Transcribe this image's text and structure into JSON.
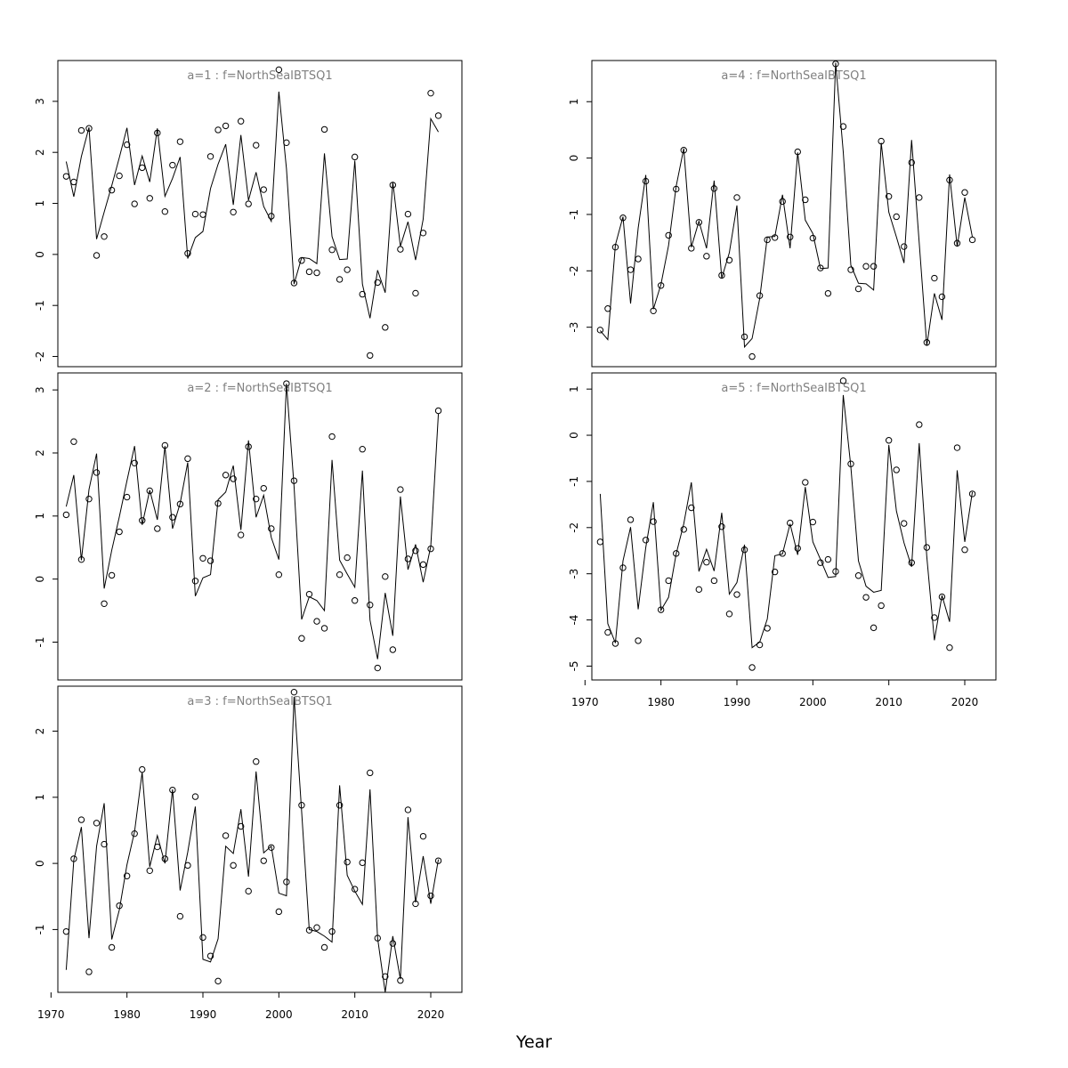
{
  "figure": {
    "xlabel": "Year"
  },
  "chart_data": [
    {
      "type": "scatter",
      "title": "a=1  :  f=NorthSeaIBTSQ1",
      "xlim": [
        1970.9,
        2024.1
      ],
      "ylim": [
        -2.2,
        3.8
      ],
      "xticks": [],
      "yticks": [
        -2,
        -1,
        0,
        1,
        2,
        3
      ],
      "x": [
        1972,
        1973,
        1974,
        1975,
        1976,
        1977,
        1978,
        1979,
        1980,
        1981,
        1982,
        1983,
        1984,
        1985,
        1986,
        1987,
        1988,
        1989,
        1990,
        1991,
        1992,
        1993,
        1994,
        1995,
        1996,
        1997,
        1998,
        1999,
        2000,
        2001,
        2002,
        2003,
        2004,
        2005,
        2006,
        2007,
        2008,
        2009,
        2010,
        2011,
        2012,
        2013,
        2014,
        2015,
        2016,
        2017,
        2018,
        2019,
        2020,
        2021
      ],
      "series": [
        {
          "marker": "circle",
          "values": [
            1.53,
            1.42,
            2.43,
            2.47,
            -0.02,
            0.35,
            1.26,
            1.54,
            2.15,
            0.99,
            1.7,
            1.1,
            2.38,
            0.84,
            1.75,
            2.21,
            0.02,
            0.79,
            0.78,
            1.92,
            2.44,
            2.52,
            0.83,
            2.61,
            0.99,
            2.14,
            1.27,
            0.75,
            3.62,
            2.19,
            -0.56,
            -0.12,
            -0.34,
            -0.36,
            2.45,
            0.09,
            -0.49,
            -0.3,
            1.91,
            -0.78,
            -1.98,
            -0.55,
            -1.43,
            1.36,
            0.1,
            0.79,
            -0.76,
            0.42,
            3.16,
            2.72
          ]
        },
        {
          "marker": "line",
          "values": [
            1.82,
            1.13,
            1.92,
            2.49,
            0.3,
            0.83,
            1.35,
            1.9,
            2.48,
            1.36,
            1.93,
            1.42,
            2.47,
            1.14,
            1.49,
            1.91,
            -0.08,
            0.33,
            0.45,
            1.29,
            1.77,
            2.16,
            0.97,
            2.34,
            1.06,
            1.61,
            0.94,
            0.65,
            3.19,
            1.68,
            -0.58,
            -0.06,
            -0.08,
            -0.18,
            1.98,
            0.35,
            -0.1,
            -0.09,
            1.84,
            -0.58,
            -1.25,
            -0.31,
            -0.75,
            1.42,
            0.16,
            0.64,
            -0.11,
            0.69,
            2.66,
            2.4
          ]
        }
      ]
    },
    {
      "type": "scatter",
      "title": "a=2  :  f=NorthSeaIBTSQ1",
      "xlim": [
        1970.9,
        2024.1
      ],
      "ylim": [
        -1.6,
        3.27
      ],
      "xticks": [],
      "yticks": [
        -1,
        0,
        1,
        2,
        3
      ],
      "x": [
        1972,
        1973,
        1974,
        1975,
        1976,
        1977,
        1978,
        1979,
        1980,
        1981,
        1982,
        1983,
        1984,
        1985,
        1986,
        1987,
        1988,
        1989,
        1990,
        1991,
        1992,
        1993,
        1994,
        1995,
        1996,
        1997,
        1998,
        1999,
        2000,
        2001,
        2002,
        2003,
        2004,
        2005,
        2006,
        2007,
        2008,
        2009,
        2010,
        2011,
        2012,
        2013,
        2014,
        2015,
        2016,
        2017,
        2018,
        2019,
        2020,
        2021
      ],
      "series": [
        {
          "marker": "circle",
          "values": [
            1.02,
            2.18,
            0.31,
            1.27,
            1.69,
            -0.39,
            0.06,
            0.75,
            1.3,
            1.84,
            0.93,
            1.4,
            0.8,
            2.12,
            0.98,
            1.19,
            1.91,
            -0.03,
            0.33,
            0.29,
            1.2,
            1.65,
            1.59,
            0.7,
            2.1,
            1.27,
            1.44,
            0.8,
            0.07,
            3.1,
            1.56,
            -0.94,
            -0.24,
            -0.67,
            -0.78,
            2.26,
            0.07,
            0.34,
            -0.34,
            2.06,
            -0.41,
            -1.41,
            0.04,
            -1.12,
            1.42,
            0.32,
            0.45,
            0.23,
            0.48,
            2.67
          ]
        },
        {
          "marker": "line",
          "values": [
            1.15,
            1.65,
            0.3,
            1.42,
            1.99,
            -0.15,
            0.46,
            0.99,
            1.56,
            2.11,
            0.86,
            1.41,
            0.94,
            2.11,
            0.8,
            1.2,
            1.85,
            -0.27,
            0.02,
            0.07,
            1.26,
            1.38,
            1.8,
            0.78,
            2.2,
            0.98,
            1.33,
            0.66,
            0.31,
            3.1,
            1.47,
            -0.64,
            -0.28,
            -0.34,
            -0.5,
            1.89,
            0.3,
            0.08,
            -0.13,
            1.72,
            -0.65,
            -1.27,
            -0.22,
            -0.9,
            1.31,
            0.15,
            0.55,
            -0.05,
            0.52,
            2.62
          ]
        }
      ]
    },
    {
      "type": "scatter",
      "title": "a=3  :  f=NorthSeaIBTSQ1",
      "xlim": [
        1970.9,
        2024.1
      ],
      "ylim": [
        -1.95,
        2.68
      ],
      "xticks": [
        1970,
        1980,
        1990,
        2000,
        2010,
        2020
      ],
      "yticks": [
        -1,
        0,
        1,
        2
      ],
      "x": [
        1972,
        1973,
        1974,
        1975,
        1976,
        1977,
        1978,
        1979,
        1980,
        1981,
        1982,
        1983,
        1984,
        1985,
        1986,
        1987,
        1988,
        1989,
        1990,
        1991,
        1992,
        1993,
        1994,
        1995,
        1996,
        1997,
        1998,
        1999,
        2000,
        2001,
        2002,
        2003,
        2004,
        2005,
        2006,
        2007,
        2008,
        2009,
        2010,
        2011,
        2012,
        2013,
        2014,
        2015,
        2016,
        2017,
        2018,
        2019,
        2020,
        2021
      ],
      "series": [
        {
          "marker": "circle",
          "values": [
            -1.03,
            0.07,
            0.66,
            -1.64,
            0.61,
            0.29,
            -1.27,
            -0.64,
            -0.19,
            0.45,
            1.42,
            -0.11,
            0.25,
            0.07,
            1.11,
            -0.8,
            -0.03,
            1.01,
            -1.12,
            -1.4,
            -1.78,
            0.42,
            -0.03,
            0.56,
            -0.42,
            1.54,
            0.04,
            0.24,
            -0.73,
            -0.28,
            2.59,
            0.88,
            -1.01,
            -0.97,
            -1.27,
            -1.03,
            0.88,
            0.02,
            -0.39,
            0.01,
            1.37,
            -1.13,
            -1.71,
            -1.21,
            -1.77,
            0.81,
            -0.61,
            0.41,
            -0.49,
            0.04
          ]
        },
        {
          "marker": "line",
          "values": [
            -1.61,
            0.05,
            0.55,
            -1.13,
            0.26,
            0.91,
            -1.15,
            -0.7,
            -0.02,
            0.48,
            1.38,
            -0.05,
            0.42,
            0.0,
            1.12,
            -0.41,
            0.17,
            0.86,
            -1.45,
            -1.49,
            -1.14,
            0.26,
            0.15,
            0.82,
            -0.2,
            1.39,
            0.16,
            0.26,
            -0.45,
            -0.49,
            2.52,
            0.78,
            -1.0,
            -1.03,
            -1.1,
            -1.19,
            1.18,
            -0.18,
            -0.42,
            -0.62,
            1.12,
            -1.13,
            -1.95,
            -1.1,
            -1.75,
            0.7,
            -0.59,
            0.11,
            -0.61,
            0.06
          ]
        }
      ]
    },
    {
      "type": "scatter",
      "title": "a=4  :  f=NorthSeaIBTSQ1",
      "xlim": [
        1970.9,
        2024.1
      ],
      "ylim": [
        -3.7,
        1.73
      ],
      "xticks": [],
      "yticks": [
        -3,
        -2,
        -1,
        0,
        1
      ],
      "x": [
        1972,
        1973,
        1974,
        1975,
        1976,
        1977,
        1978,
        1979,
        1980,
        1981,
        1982,
        1983,
        1984,
        1985,
        1986,
        1987,
        1988,
        1989,
        1990,
        1991,
        1992,
        1993,
        1994,
        1995,
        1996,
        1997,
        1998,
        1999,
        2000,
        2001,
        2002,
        2003,
        2004,
        2005,
        2006,
        2007,
        2008,
        2009,
        2010,
        2011,
        2012,
        2013,
        2014,
        2015,
        2016,
        2017,
        2018,
        2019,
        2020,
        2021
      ],
      "series": [
        {
          "marker": "circle",
          "values": [
            -3.05,
            -2.67,
            -1.58,
            -1.06,
            -1.98,
            -1.79,
            -0.41,
            -2.71,
            -2.26,
            -1.37,
            -0.55,
            0.14,
            -1.6,
            -1.14,
            -1.74,
            -0.54,
            -2.08,
            -1.81,
            -0.7,
            -3.17,
            -3.52,
            -2.44,
            -1.45,
            -1.41,
            -0.77,
            -1.4,
            0.11,
            -0.74,
            -1.42,
            -1.95,
            -2.4,
            1.67,
            0.56,
            -1.98,
            -2.32,
            -1.92,
            -1.92,
            0.3,
            -0.68,
            -1.04,
            -1.57,
            -0.08,
            -0.7,
            -3.27,
            -2.13,
            -2.46,
            -0.39,
            -1.51,
            -0.61,
            -1.45
          ]
        },
        {
          "marker": "line",
          "values": [
            -3.06,
            -3.22,
            -1.54,
            -1.04,
            -2.58,
            -1.24,
            -0.3,
            -2.68,
            -2.24,
            -1.55,
            -0.5,
            0.17,
            -1.58,
            -1.12,
            -1.6,
            -0.4,
            -2.13,
            -1.68,
            -0.84,
            -3.35,
            -3.2,
            -2.49,
            -1.4,
            -1.39,
            -0.65,
            -1.6,
            0.1,
            -1.1,
            -1.34,
            -1.96,
            -1.95,
            1.69,
            0.11,
            -1.9,
            -2.22,
            -2.23,
            -2.34,
            0.27,
            -0.96,
            -1.4,
            -1.86,
            0.32,
            -1.5,
            -3.33,
            -2.4,
            -2.87,
            -0.29,
            -1.57,
            -0.7,
            -1.4
          ]
        }
      ]
    },
    {
      "type": "scatter",
      "title": "a=5  :  f=NorthSeaIBTSQ1",
      "xlim": [
        1970.9,
        2024.1
      ],
      "ylim": [
        -5.3,
        1.35
      ],
      "xticks": [
        1970,
        1980,
        1990,
        2000,
        2010,
        2020
      ],
      "yticks": [
        -5,
        -4,
        -3,
        -2,
        -1,
        0,
        1
      ],
      "x": [
        1972,
        1973,
        1974,
        1975,
        1976,
        1977,
        1978,
        1979,
        1980,
        1981,
        1982,
        1983,
        1984,
        1985,
        1986,
        1987,
        1988,
        1989,
        1990,
        1991,
        1992,
        1993,
        1994,
        1995,
        1996,
        1997,
        1998,
        1999,
        2000,
        2001,
        2002,
        2003,
        2004,
        2005,
        2006,
        2007,
        2008,
        2009,
        2010,
        2011,
        2012,
        2013,
        2014,
        2015,
        2016,
        2017,
        2018,
        2019,
        2020,
        2021
      ],
      "series": [
        {
          "marker": "circle",
          "values": [
            -2.31,
            -4.27,
            -4.51,
            -2.87,
            -1.83,
            -4.45,
            -2.27,
            -1.87,
            -3.78,
            -3.15,
            -2.56,
            -2.04,
            -1.57,
            -3.34,
            -2.75,
            -3.15,
            -1.98,
            -3.87,
            -3.45,
            -2.48,
            -5.03,
            -4.54,
            -4.18,
            -2.96,
            -2.56,
            -1.9,
            -2.45,
            -1.02,
            -1.88,
            -2.76,
            -2.69,
            -2.95,
            1.18,
            -0.62,
            -3.04,
            -3.51,
            -4.17,
            -3.69,
            -0.11,
            -0.75,
            -1.91,
            -2.76,
            0.23,
            -2.43,
            -3.95,
            -3.5,
            -4.6,
            -0.27,
            -2.48,
            -1.27
          ]
        },
        {
          "marker": "line",
          "values": [
            -1.27,
            -4.08,
            -4.5,
            -2.72,
            -1.99,
            -3.77,
            -2.43,
            -1.45,
            -3.79,
            -3.51,
            -2.57,
            -1.92,
            -1.02,
            -2.95,
            -2.47,
            -2.94,
            -1.68,
            -3.44,
            -3.19,
            -2.37,
            -4.6,
            -4.48,
            -3.98,
            -2.61,
            -2.57,
            -1.92,
            -2.59,
            -1.12,
            -2.31,
            -2.69,
            -3.08,
            -3.06,
            0.87,
            -0.68,
            -2.72,
            -3.27,
            -3.4,
            -3.36,
            -0.21,
            -1.64,
            -2.33,
            -2.85,
            -0.17,
            -2.63,
            -4.44,
            -3.47,
            -4.04,
            -0.76,
            -2.31,
            -1.23
          ]
        }
      ]
    }
  ]
}
